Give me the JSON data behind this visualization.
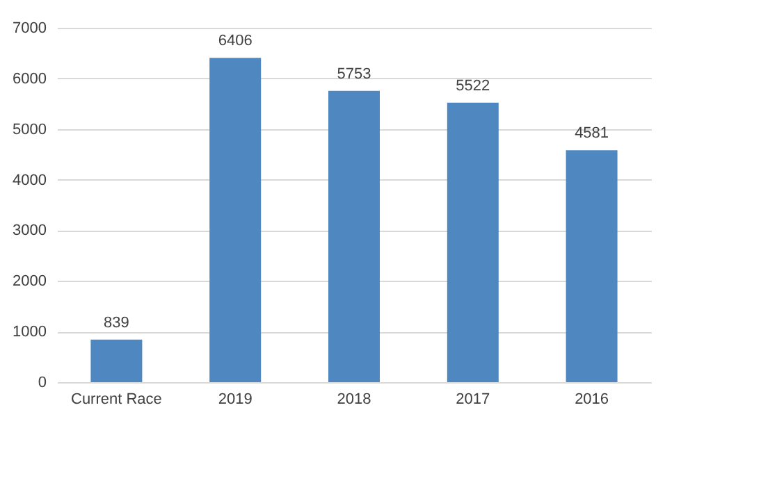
{
  "chart_data": {
    "type": "bar",
    "categories": [
      "Current Race",
      "2019",
      "2018",
      "2017",
      "2016"
    ],
    "values": [
      839,
      6406,
      5753,
      5522,
      4581
    ],
    "color": "#4f88c0",
    "ylim": [
      0,
      7000
    ],
    "yticks": [
      0,
      1000,
      2000,
      3000,
      4000,
      5000,
      6000,
      7000
    ],
    "grid": "y",
    "data_labels": true
  }
}
